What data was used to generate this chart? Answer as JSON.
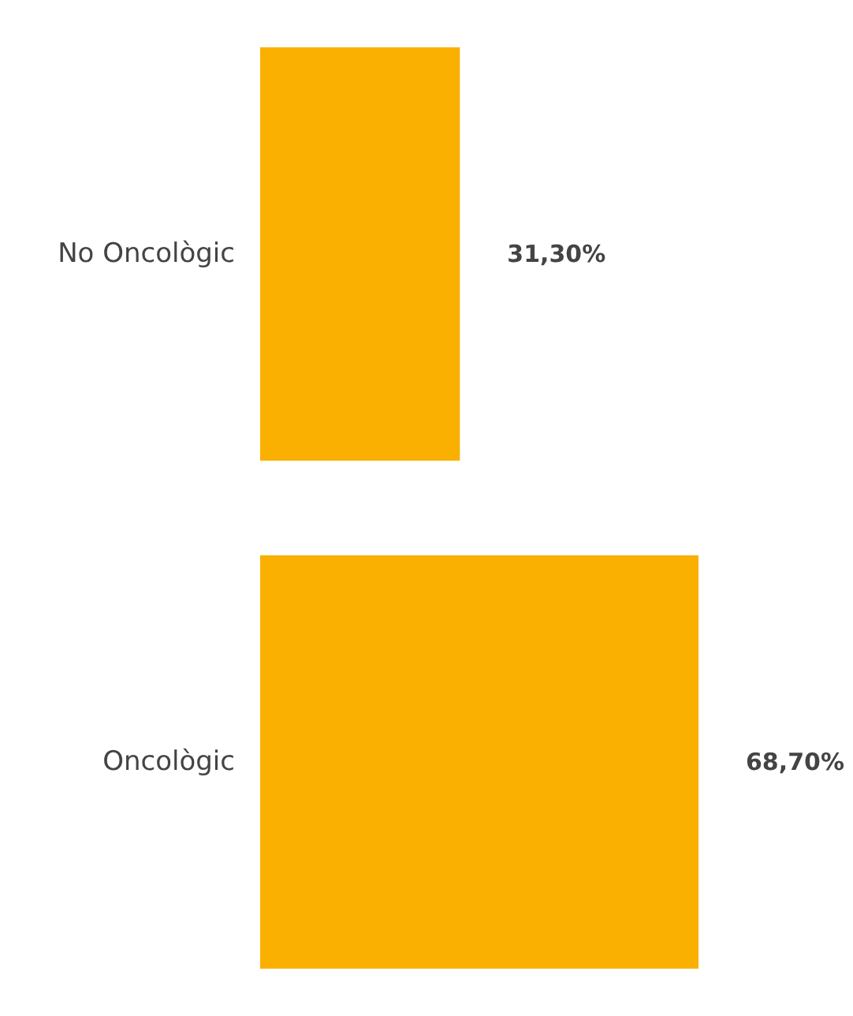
{
  "chart_data": {
    "type": "bar",
    "orientation": "horizontal",
    "categories": [
      "No Oncològic",
      "Oncològic"
    ],
    "values": [
      31.3,
      68.7
    ],
    "value_labels": [
      "31,30%",
      "68,70%"
    ],
    "color": "#f9b000"
  }
}
